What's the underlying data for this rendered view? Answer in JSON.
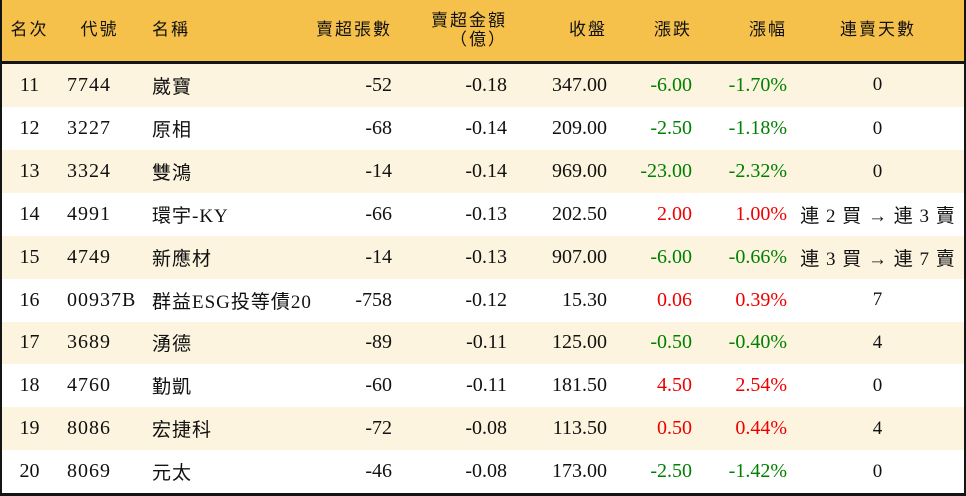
{
  "colors": {
    "header_bg": "#F6C14B",
    "row_alt_bg": "#FCF4DE",
    "row_bg": "#FFFFFF",
    "up_red": "#ee0000",
    "down_green": "#008000",
    "border_black": "#141414"
  },
  "table": {
    "columns": [
      {
        "key": "rank",
        "label": "名次"
      },
      {
        "key": "code",
        "label": "代號"
      },
      {
        "key": "name",
        "label": "名稱"
      },
      {
        "key": "sell_volume",
        "label": "賣超張數"
      },
      {
        "key": "sell_amount",
        "label": "賣超金額",
        "label2": "（億）"
      },
      {
        "key": "close",
        "label": "收盤"
      },
      {
        "key": "change",
        "label": "漲跌"
      },
      {
        "key": "change_pct",
        "label": "漲幅"
      },
      {
        "key": "streak",
        "label": "連賣天數"
      }
    ],
    "rows": [
      {
        "rank": "11",
        "code": "7744",
        "name": "崴寶",
        "sell_volume": "-52",
        "sell_amount": "-0.18",
        "close": "347.00",
        "change": "-6.00",
        "change_pct": "-1.70%",
        "trend": "down",
        "streak": "0"
      },
      {
        "rank": "12",
        "code": "3227",
        "name": "原相",
        "sell_volume": "-68",
        "sell_amount": "-0.14",
        "close": "209.00",
        "change": "-2.50",
        "change_pct": "-1.18%",
        "trend": "down",
        "streak": "0"
      },
      {
        "rank": "13",
        "code": "3324",
        "name": "雙鴻",
        "sell_volume": "-14",
        "sell_amount": "-0.14",
        "close": "969.00",
        "change": "-23.00",
        "change_pct": "-2.32%",
        "trend": "down",
        "streak": "0"
      },
      {
        "rank": "14",
        "code": "4991",
        "name": "環宇-KY",
        "sell_volume": "-66",
        "sell_amount": "-0.13",
        "close": "202.50",
        "change": "2.00",
        "change_pct": "1.00%",
        "trend": "up",
        "streak": "連 2 買 → 連 3 賣"
      },
      {
        "rank": "15",
        "code": "4749",
        "name": "新應材",
        "sell_volume": "-14",
        "sell_amount": "-0.13",
        "close": "907.00",
        "change": "-6.00",
        "change_pct": "-0.66%",
        "trend": "down",
        "streak": "連 3 買 → 連 7 賣"
      },
      {
        "rank": "16",
        "code": "00937B",
        "name": "群益ESG投等債20",
        "sell_volume": "-758",
        "sell_amount": "-0.12",
        "close": "15.30",
        "change": "0.06",
        "change_pct": "0.39%",
        "trend": "up",
        "streak": "7"
      },
      {
        "rank": "17",
        "code": "3689",
        "name": "湧德",
        "sell_volume": "-89",
        "sell_amount": "-0.11",
        "close": "125.00",
        "change": "-0.50",
        "change_pct": "-0.40%",
        "trend": "down",
        "streak": "4"
      },
      {
        "rank": "18",
        "code": "4760",
        "name": "勤凱",
        "sell_volume": "-60",
        "sell_amount": "-0.11",
        "close": "181.50",
        "change": "4.50",
        "change_pct": "2.54%",
        "trend": "up",
        "streak": "0"
      },
      {
        "rank": "19",
        "code": "8086",
        "name": "宏捷科",
        "sell_volume": "-72",
        "sell_amount": "-0.08",
        "close": "113.50",
        "change": "0.50",
        "change_pct": "0.44%",
        "trend": "up",
        "streak": "4"
      },
      {
        "rank": "20",
        "code": "8069",
        "name": "元太",
        "sell_volume": "-46",
        "sell_amount": "-0.08",
        "close": "173.00",
        "change": "-2.50",
        "change_pct": "-1.42%",
        "trend": "down",
        "streak": "0"
      }
    ]
  }
}
